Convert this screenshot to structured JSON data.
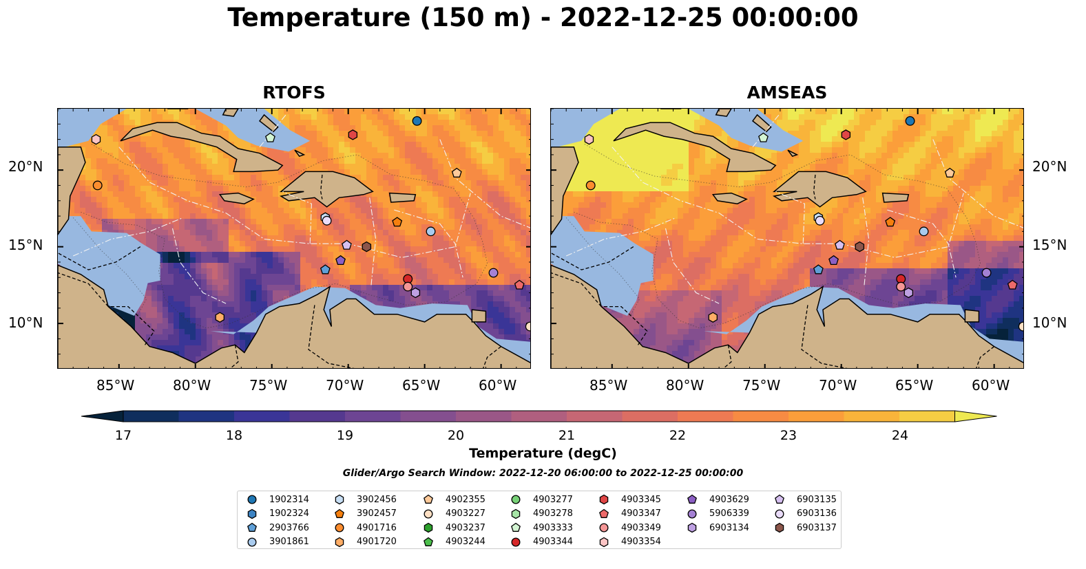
{
  "title": "Temperature (150 m) - 2022-12-25 00:00:00",
  "panels": [
    {
      "title": "RTOFS",
      "variant": "rtofs"
    },
    {
      "title": "AMSEAS",
      "variant": "amseas"
    }
  ],
  "lon_labels": [
    "85°W",
    "80°W",
    "75°W",
    "70°W",
    "65°W",
    "60°W"
  ],
  "lat_labels": [
    "20°N",
    "15°N",
    "10°N"
  ],
  "colorbar": {
    "label": "Temperature (degC)",
    "ticks": [
      "17",
      "18",
      "19",
      "20",
      "21",
      "22",
      "23",
      "24"
    ],
    "colors": [
      "#06223a",
      "#0f2e5d",
      "#1f3481",
      "#3a3597",
      "#55398f",
      "#6d4593",
      "#844f8f",
      "#9a5787",
      "#b05f7f",
      "#c66774",
      "#dc6e63",
      "#ee7a53",
      "#f78b43",
      "#fb9e3a",
      "#f9b43a",
      "#f5cd43",
      "#eee952"
    ]
  },
  "search_window": "Glider/Argo Search Window: 2022-12-20 06:00:00 to 2022-12-25 00:00:00",
  "legend": {
    "columns": [
      [
        {
          "id": "1902314",
          "marker": "circle",
          "color": "#1f77b4"
        },
        {
          "id": "1902324",
          "marker": "hexagon",
          "color": "#3d84c4"
        },
        {
          "id": "2903766",
          "marker": "pentagon",
          "color": "#5fa0d8"
        },
        {
          "id": "3901861",
          "marker": "circle",
          "color": "#a9cbee"
        }
      ],
      [
        {
          "id": "3902456",
          "marker": "hexagon",
          "color": "#c8dff5"
        },
        {
          "id": "3902457",
          "marker": "pentagon",
          "color": "#f57f0e"
        },
        {
          "id": "4901716",
          "marker": "circle",
          "color": "#fd8d2f"
        },
        {
          "id": "4901720",
          "marker": "hexagon",
          "color": "#ffad66"
        }
      ],
      [
        {
          "id": "4902355",
          "marker": "pentagon",
          "color": "#ffca9a"
        },
        {
          "id": "4903227",
          "marker": "circle",
          "color": "#ffe0c4"
        },
        {
          "id": "4903237",
          "marker": "hexagon",
          "color": "#2ca02c"
        },
        {
          "id": "4903244",
          "marker": "pentagon",
          "color": "#4cbf4c"
        }
      ],
      [
        {
          "id": "4903277",
          "marker": "circle",
          "color": "#78d278"
        },
        {
          "id": "4903278",
          "marker": "hexagon",
          "color": "#a6e4a6"
        },
        {
          "id": "4903333",
          "marker": "pentagon",
          "color": "#d3f4d3"
        },
        {
          "id": "4903344",
          "marker": "circle",
          "color": "#d62728"
        }
      ],
      [
        {
          "id": "4903345",
          "marker": "hexagon",
          "color": "#e04646"
        },
        {
          "id": "4903347",
          "marker": "pentagon",
          "color": "#ed6a6a"
        },
        {
          "id": "4903349",
          "marker": "circle",
          "color": "#f49696"
        },
        {
          "id": "4903354",
          "marker": "hexagon",
          "color": "#fbc4c4"
        }
      ],
      [
        {
          "id": "4903629",
          "marker": "pentagon",
          "color": "#8c5fc4"
        },
        {
          "id": "5906339",
          "marker": "circle",
          "color": "#a581d4"
        },
        {
          "id": "6903134",
          "marker": "hexagon",
          "color": "#bea0e2"
        }
      ],
      [
        {
          "id": "6903135",
          "marker": "pentagon",
          "color": "#d6c0f0"
        },
        {
          "id": "6903136",
          "marker": "circle",
          "color": "#eadcfa"
        },
        {
          "id": "6903137",
          "marker": "hexagon",
          "color": "#8c564b"
        }
      ]
    ]
  },
  "map_colors": {
    "land": "#cfb38a",
    "shelf": "#98b8e0",
    "coast": "#000000"
  },
  "map_extent": {
    "lon": [
      -89,
      -58
    ],
    "lat": [
      7,
      24
    ]
  },
  "floats": [
    {
      "id": "1902314",
      "lon": -65.5,
      "lat": 23.2
    },
    {
      "id": "4903345",
      "lon": -69.7,
      "lat": 22.3
    },
    {
      "id": "4903354",
      "lon": -86.5,
      "lat": 22.0
    },
    {
      "id": "4903333",
      "lon": -75.1,
      "lat": 22.1
    },
    {
      "id": "4901716",
      "lon": -86.4,
      "lat": 19.0
    },
    {
      "id": "4902355",
      "lon": -62.9,
      "lat": 19.8
    },
    {
      "id": "3902456",
      "lon": -71.5,
      "lat": 16.9
    },
    {
      "id": "6903136",
      "lon": -71.4,
      "lat": 16.7
    },
    {
      "id": "3902457",
      "lon": -66.8,
      "lat": 16.6
    },
    {
      "id": "3901861",
      "lon": -64.6,
      "lat": 16.0
    },
    {
      "id": "6903135",
      "lon": -70.1,
      "lat": 15.1
    },
    {
      "id": "6903137",
      "lon": -68.8,
      "lat": 15.0
    },
    {
      "id": "4903629",
      "lon": -70.5,
      "lat": 14.1
    },
    {
      "id": "2903766",
      "lon": -71.5,
      "lat": 13.5
    },
    {
      "id": "4903344",
      "lon": -66.1,
      "lat": 12.9
    },
    {
      "id": "4903349",
      "lon": -66.1,
      "lat": 12.4
    },
    {
      "id": "6903134",
      "lon": -65.6,
      "lat": 12.0
    },
    {
      "id": "5906339",
      "lon": -60.5,
      "lat": 13.3
    },
    {
      "id": "4903347",
      "lon": -58.8,
      "lat": 12.5
    },
    {
      "id": "4901720",
      "lon": -78.4,
      "lat": 10.4
    },
    {
      "id": "4903227",
      "lon": -58.1,
      "lat": 9.8
    }
  ]
}
